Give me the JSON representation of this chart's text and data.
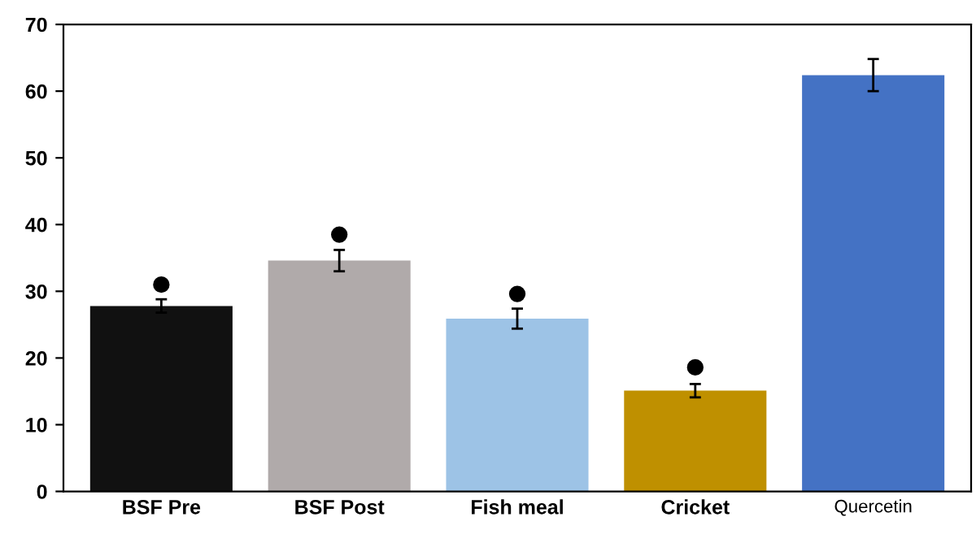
{
  "chart_data": {
    "type": "bar",
    "categories": [
      "BSF Pre",
      "BSF Post",
      "Fish meal",
      "Cricket",
      "Quercetin"
    ],
    "values": [
      27.8,
      34.6,
      25.9,
      15.1,
      62.4
    ],
    "colors": [
      "#111111",
      "#b0aaaa",
      "#9dc3e6",
      "#bf9000",
      "#4472c4"
    ],
    "errors": [
      1.0,
      1.6,
      1.5,
      1.0,
      2.4
    ],
    "series": [
      {
        "type": "scatter",
        "x": [
          "BSF Pre",
          "BSF Post",
          "Fish meal",
          "Cricket"
        ],
        "values": [
          31.0,
          38.5,
          29.6,
          18.6
        ],
        "color": "#000000",
        "marker": "circle"
      }
    ],
    "ylim": [
      0,
      70
    ],
    "yticks": [
      0,
      10,
      20,
      30,
      40,
      50,
      60,
      70
    ],
    "grid": false,
    "legend": false
  }
}
